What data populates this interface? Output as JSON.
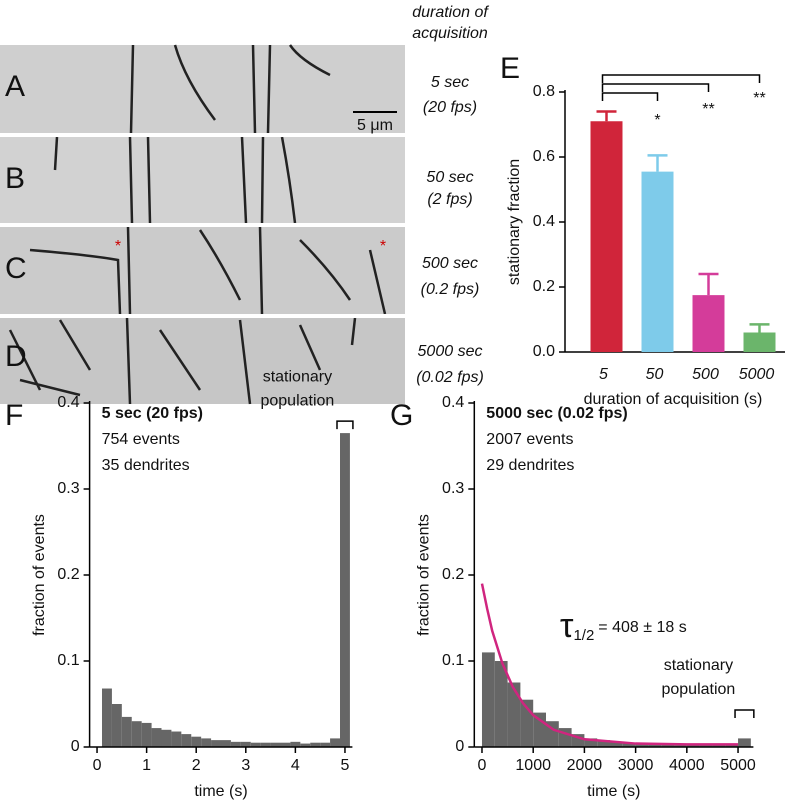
{
  "kymographs": {
    "header": [
      "duration of",
      "acquisition"
    ],
    "panels": [
      {
        "letter": "A",
        "label": [
          "5 sec",
          "(20 fps)"
        ]
      },
      {
        "letter": "B",
        "label": [
          "50 sec",
          "(2 fps)"
        ]
      },
      {
        "letter": "C",
        "label": [
          "500 sec",
          "(0.2 fps)"
        ]
      },
      {
        "letter": "D",
        "label": [
          "5000 sec",
          "(0.02 fps)"
        ]
      }
    ],
    "scale_bar": "5 μm",
    "marker": "*"
  },
  "chart_data": [
    {
      "type": "bar",
      "panel": "E",
      "y_label": "stationary fraction",
      "x_label": "duration of acquisition (s)",
      "categories": [
        "5",
        "50",
        "500",
        "5000"
      ],
      "values": [
        0.71,
        0.555,
        0.175,
        0.06
      ],
      "errors": [
        0.03,
        0.05,
        0.065,
        0.025
      ],
      "colors": [
        "#d0253a",
        "#7ecbea",
        "#d43c9a",
        "#6bb56b"
      ],
      "ylim": [
        0,
        0.8
      ],
      "yticks": [
        {
          "value": 0,
          "label": "0.0"
        },
        0.2,
        0.4,
        0.6,
        0.8
      ],
      "comparisons": [
        {
          "from": 0,
          "to": 1,
          "label": "*"
        },
        {
          "from": 0,
          "to": 2,
          "label": "**"
        },
        {
          "from": 0,
          "to": 3,
          "label": "**"
        }
      ]
    },
    {
      "type": "histogram",
      "panel": "F",
      "y_label": "fraction of events",
      "x_label": "time (s)",
      "annotation": {
        "title": "5 sec (20 fps)",
        "lines": [
          "754 events",
          "35 dendrites"
        ]
      },
      "bracket_label": [
        "stationary",
        "population"
      ],
      "bins": [
        0.1,
        0.3,
        0.5,
        0.7,
        0.9,
        1.1,
        1.3,
        1.5,
        1.7,
        1.9,
        2.1,
        2.3,
        2.5,
        2.7,
        2.9,
        3.1,
        3.3,
        3.5,
        3.7,
        3.9,
        4.1,
        4.3,
        4.5,
        4.7,
        4.9,
        5.1
      ],
      "values": [
        0.068,
        0.05,
        0.035,
        0.03,
        0.028,
        0.022,
        0.02,
        0.018,
        0.015,
        0.012,
        0.01,
        0.008,
        0.008,
        0.006,
        0.006,
        0.005,
        0.005,
        0.005,
        0.005,
        0.006,
        0.004,
        0.005,
        0.005,
        0.01,
        0.365
      ],
      "color": "#666666",
      "xlim": [
        -0.15,
        5.15
      ],
      "xticks": [
        0,
        1,
        2,
        3,
        4,
        5
      ],
      "ylim": [
        0,
        0.4
      ],
      "yticks": [
        0,
        0.1,
        0.2,
        0.3,
        0.4
      ]
    },
    {
      "type": "histogram",
      "panel": "G",
      "y_label": "fraction of events",
      "x_label": "time (s)",
      "annotation": {
        "title": "5000 sec (0.02 fps)",
        "lines": [
          "2007 events",
          "29 dendrites"
        ]
      },
      "fit_label": {
        "symbol": "τ",
        "subscript": "1/2",
        "text": "= 408 ± 18 s"
      },
      "bracket_label": [
        "stationary",
        "population"
      ],
      "bins": [
        0,
        250,
        500,
        750,
        1000,
        1250,
        1500,
        1750,
        2000,
        2250,
        2500,
        2750,
        3000,
        3250,
        3500,
        3750,
        4000,
        4250,
        4500,
        4750,
        5000,
        5250
      ],
      "values": [
        0.11,
        0.1,
        0.075,
        0.055,
        0.04,
        0.03,
        0.022,
        0.015,
        0.01,
        0.008,
        0.006,
        0.005,
        0.004,
        0.003,
        0.003,
        0.002,
        0.002,
        0.002,
        0.002,
        0.004,
        0.01
      ],
      "color": "#666666",
      "fit": {
        "color": "#d0257f",
        "x": [
          0,
          100,
          200,
          400,
          600,
          800,
          1000,
          1400,
          2000,
          3000,
          4000,
          5000
        ],
        "values": [
          0.19,
          0.161,
          0.135,
          0.097,
          0.07,
          0.051,
          0.037,
          0.02,
          0.009,
          0.004,
          0.003,
          0.003
        ]
      },
      "xlim": [
        -150,
        5300
      ],
      "xticks": [
        0,
        1000,
        2000,
        3000,
        4000,
        5000
      ],
      "ylim": [
        0,
        0.4
      ],
      "yticks": [
        0,
        0.1,
        0.2,
        0.3,
        0.4
      ]
    }
  ]
}
